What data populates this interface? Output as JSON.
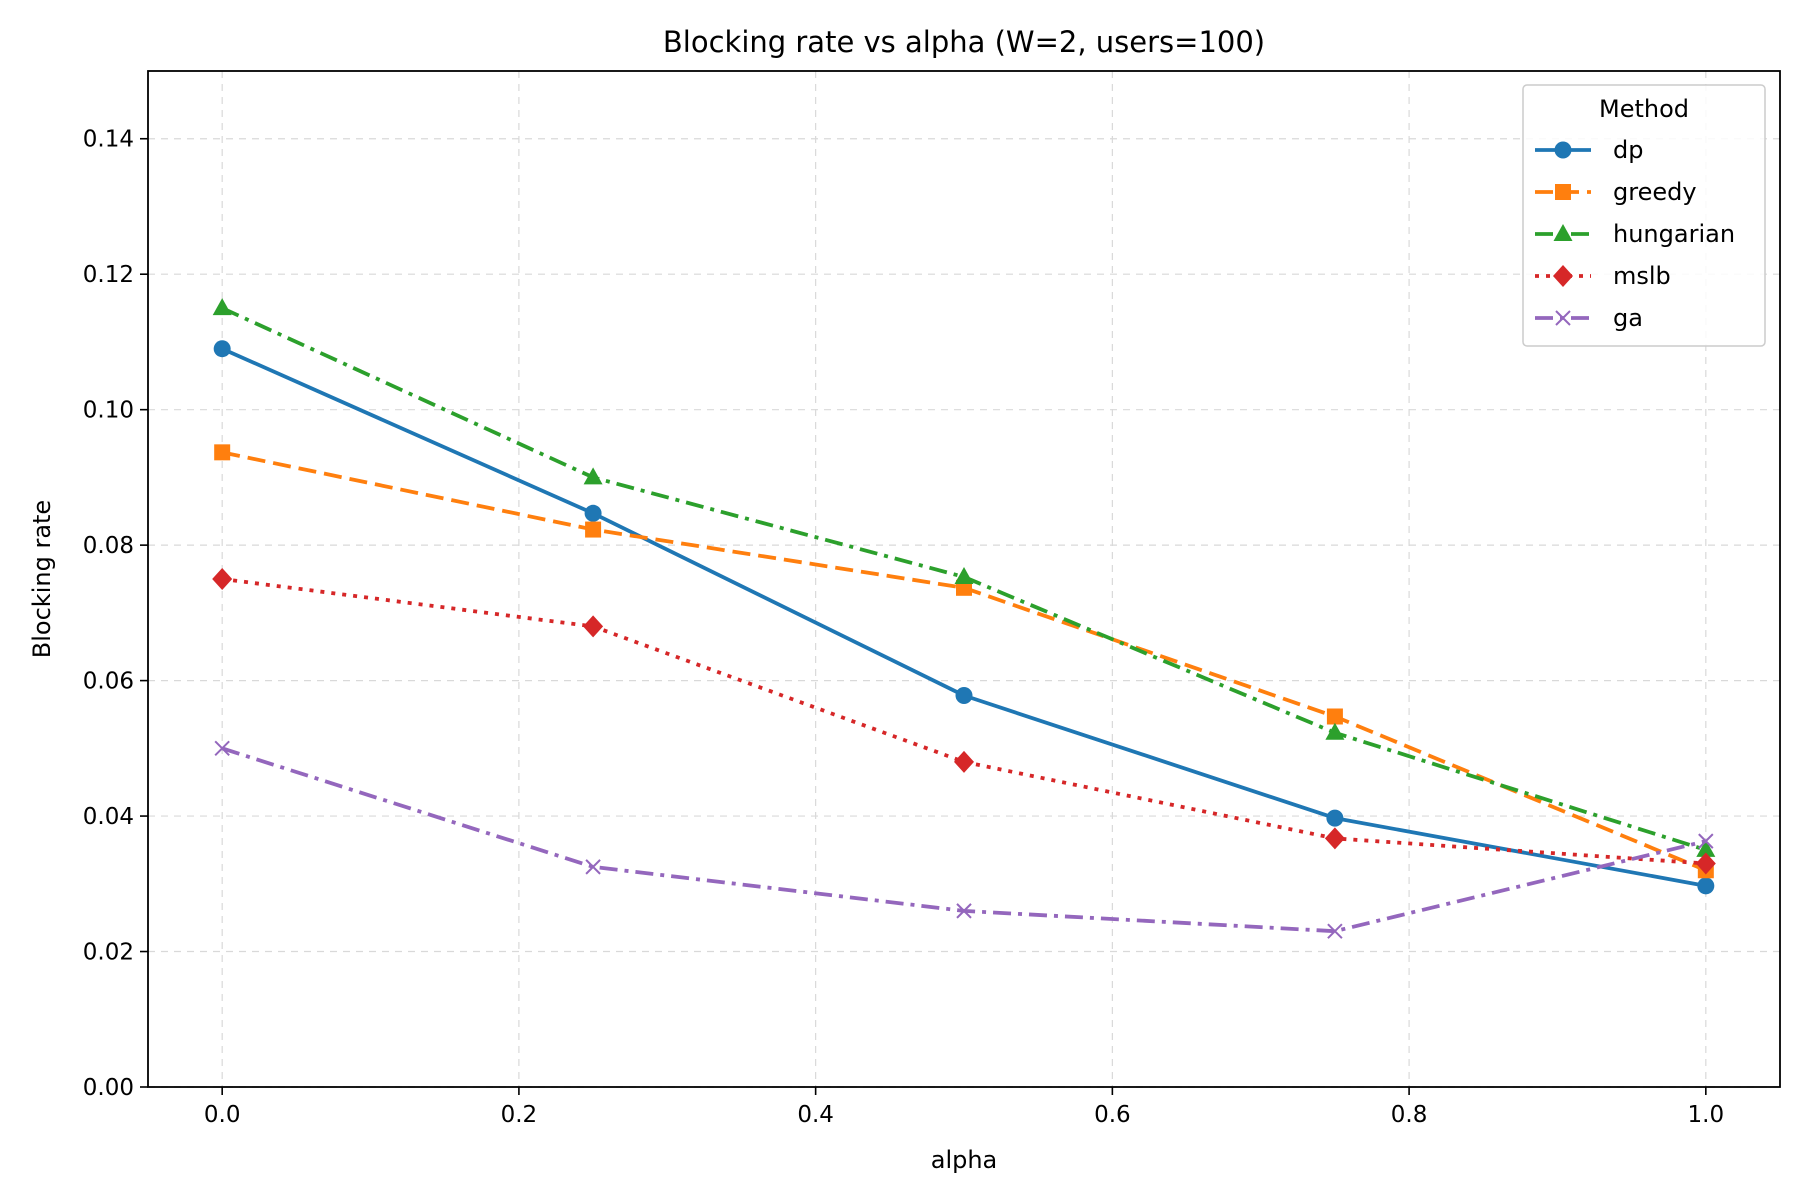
{
  "chart_data": {
    "type": "line",
    "title": "Blocking rate vs alpha (W=2, users=100)",
    "xlabel": "alpha",
    "ylabel": "Blocking rate",
    "xlim": [
      -0.05,
      1.05
    ],
    "ylim": [
      0,
      0.15
    ],
    "xticks": [
      0.0,
      0.2,
      0.4,
      0.6,
      0.8,
      1.0
    ],
    "xtick_labels": [
      "0.0",
      "0.2",
      "0.4",
      "0.6",
      "0.8",
      "1.0"
    ],
    "yticks": [
      0.0,
      0.02,
      0.04,
      0.06,
      0.08,
      0.1,
      0.12,
      0.14
    ],
    "ytick_labels": [
      "0.00",
      "0.02",
      "0.04",
      "0.06",
      "0.08",
      "0.10",
      "0.12",
      "0.14"
    ],
    "grid": true,
    "legend": {
      "title": "Method",
      "placement": "top-right"
    },
    "x": [
      0.0,
      0.25,
      0.5,
      0.75,
      1.0
    ],
    "series": [
      {
        "name": "dp",
        "values": [
          0.109,
          0.0847,
          0.0578,
          0.0397,
          0.0297
        ],
        "color": "#1f77b4",
        "marker": "circle",
        "linestyle": "solid"
      },
      {
        "name": "greedy",
        "values": [
          0.0937,
          0.0823,
          0.0737,
          0.0547,
          0.032
        ],
        "color": "#ff7f0e",
        "marker": "square",
        "linestyle": "dashed"
      },
      {
        "name": "hungarian",
        "values": [
          0.115,
          0.09,
          0.0753,
          0.0523,
          0.035
        ],
        "color": "#2ca02c",
        "marker": "triangle",
        "linestyle": "dashdot"
      },
      {
        "name": "mslb",
        "values": [
          0.075,
          0.068,
          0.048,
          0.0367,
          0.033
        ],
        "color": "#d62728",
        "marker": "diamond",
        "linestyle": "dotted"
      },
      {
        "name": "ga",
        "values": [
          0.05,
          0.0325,
          0.026,
          0.023,
          0.0363
        ],
        "color": "#9467bd",
        "marker": "x",
        "linestyle": "dashdot"
      }
    ]
  }
}
